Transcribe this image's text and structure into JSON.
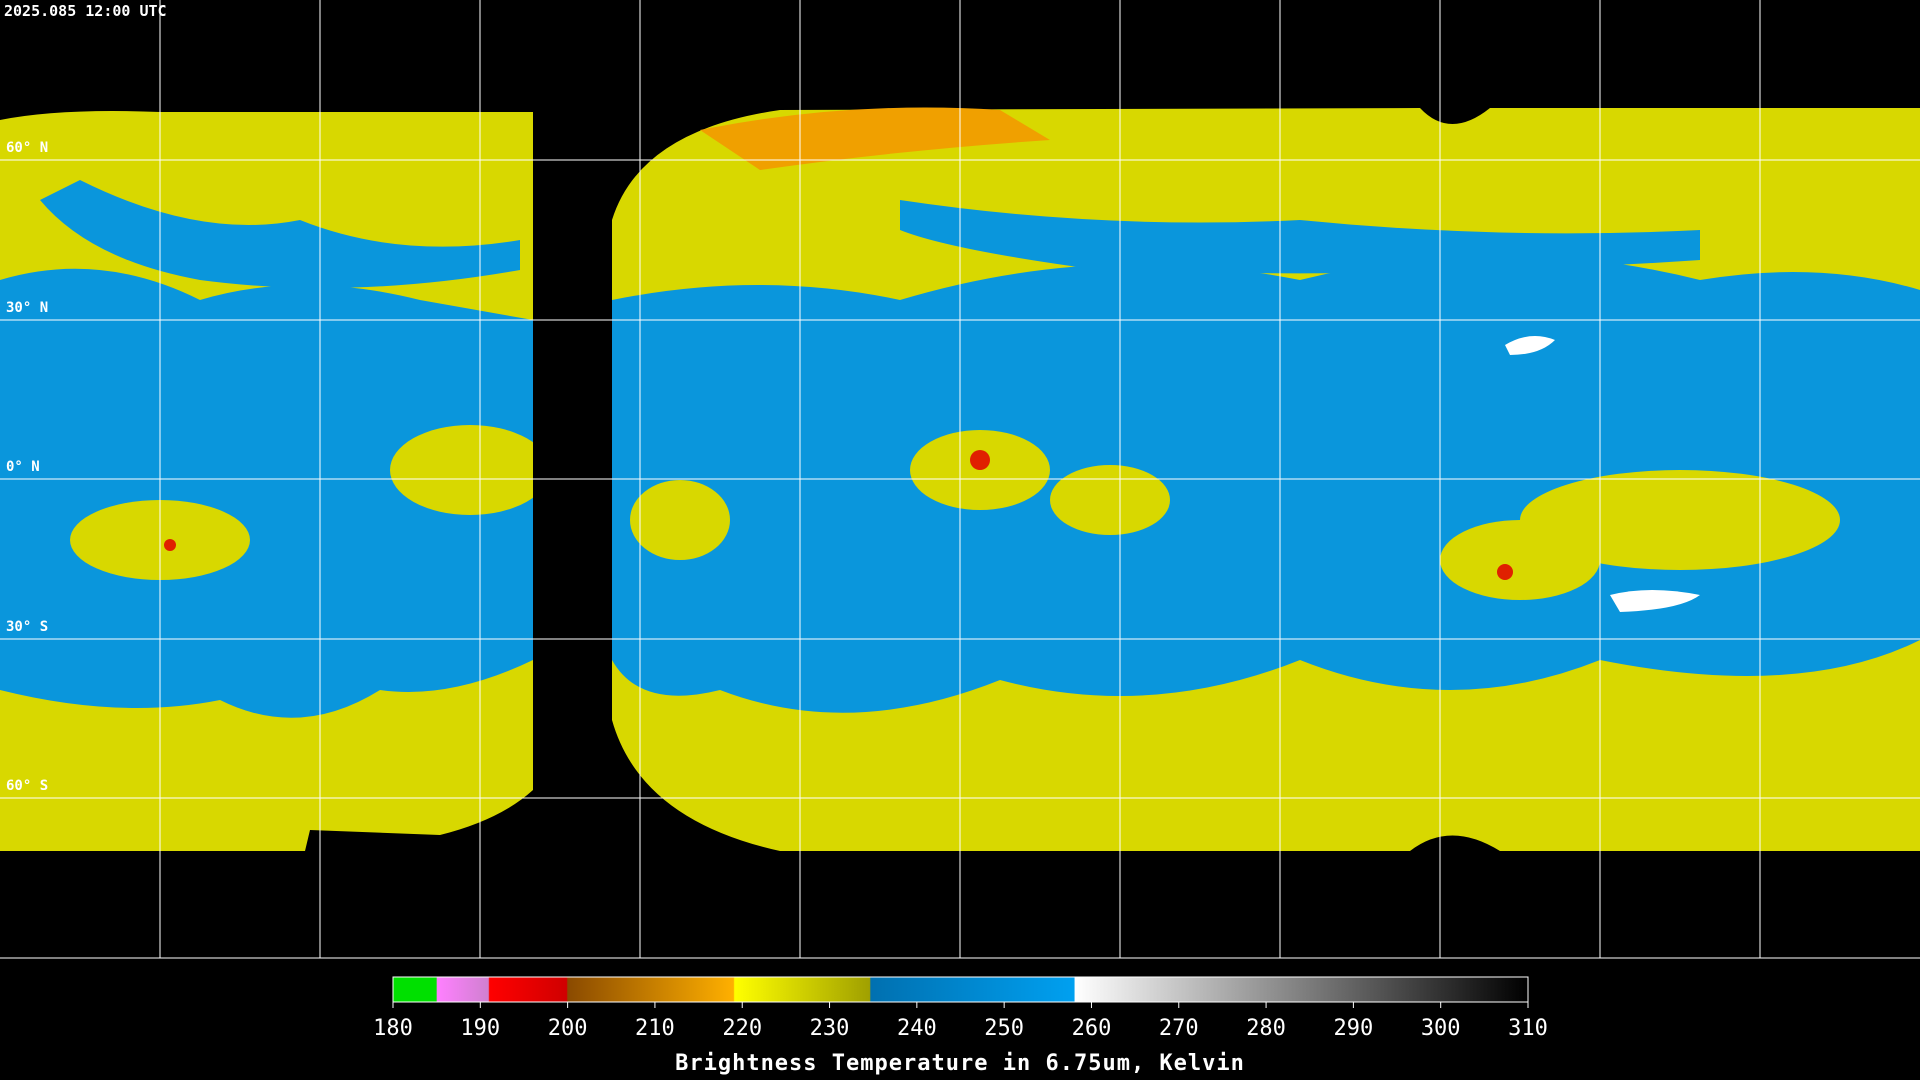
{
  "timestamp": "2025.085 12:00 UTC",
  "lat_labels": [
    "60° N",
    "30° N",
    "0° N",
    "30° S",
    "60° S"
  ],
  "colorbar": {
    "range": [
      180,
      310
    ],
    "ticks": [
      180,
      190,
      200,
      210,
      220,
      230,
      240,
      250,
      260,
      270,
      280,
      290,
      300,
      310
    ],
    "title": "Brightness Temperature in 6.75um, Kelvin"
  }
}
